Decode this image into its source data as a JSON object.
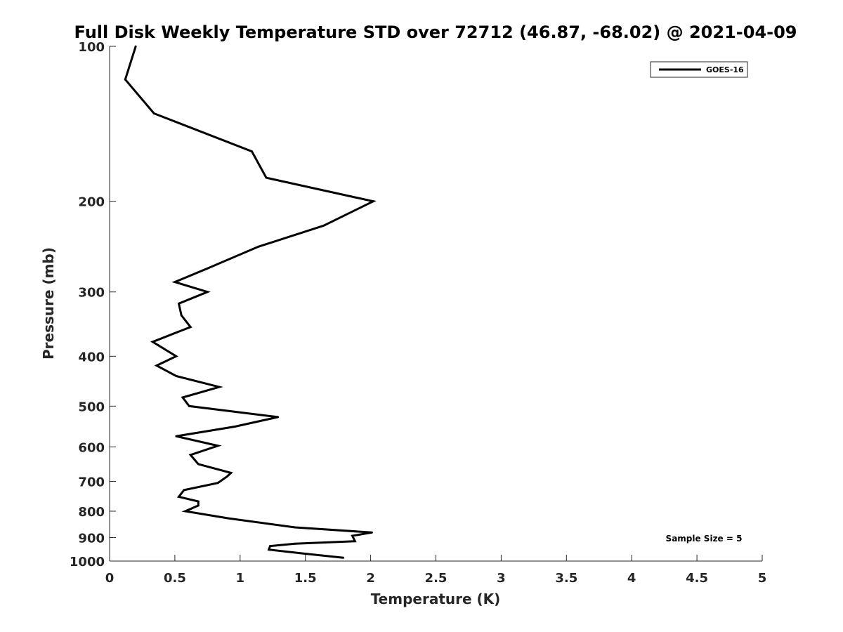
{
  "chart_data": {
    "type": "line",
    "title": "Full Disk Weekly Temperature STD over 72712 (46.87, -68.02) @ 2021-04-09",
    "xlabel": "Temperature (K)",
    "ylabel": "Pressure (mb)",
    "xlim": [
      0,
      5
    ],
    "ylim": [
      100,
      1000
    ],
    "y_scale": "log",
    "y_reversed": true,
    "x_ticks": [
      "0",
      "0.5",
      "1",
      "1.5",
      "2",
      "2.5",
      "3",
      "3.5",
      "4",
      "4.5",
      "5"
    ],
    "y_ticks": [
      "100",
      "200",
      "300",
      "400",
      "500",
      "600",
      "700",
      "800",
      "900",
      "1000"
    ],
    "grid": false,
    "legend_position": "top-right",
    "annotation": "Sample Size = 5",
    "series": [
      {
        "name": "GOES-16",
        "color": "#000000",
        "points": [
          {
            "x": 0.2,
            "y": 100
          },
          {
            "x": 0.12,
            "y": 116
          },
          {
            "x": 0.34,
            "y": 135
          },
          {
            "x": 1.09,
            "y": 160
          },
          {
            "x": 1.2,
            "y": 180
          },
          {
            "x": 2.02,
            "y": 200
          },
          {
            "x": 1.64,
            "y": 223
          },
          {
            "x": 1.14,
            "y": 245
          },
          {
            "x": 0.75,
            "y": 270
          },
          {
            "x": 0.5,
            "y": 287
          },
          {
            "x": 0.75,
            "y": 300
          },
          {
            "x": 0.53,
            "y": 316
          },
          {
            "x": 0.55,
            "y": 333
          },
          {
            "x": 0.62,
            "y": 351
          },
          {
            "x": 0.33,
            "y": 375
          },
          {
            "x": 0.51,
            "y": 400
          },
          {
            "x": 0.36,
            "y": 417
          },
          {
            "x": 0.51,
            "y": 437
          },
          {
            "x": 0.84,
            "y": 459
          },
          {
            "x": 0.56,
            "y": 481
          },
          {
            "x": 0.61,
            "y": 500
          },
          {
            "x": 1.29,
            "y": 525
          },
          {
            "x": 0.96,
            "y": 548
          },
          {
            "x": 0.51,
            "y": 572
          },
          {
            "x": 0.83,
            "y": 597
          },
          {
            "x": 0.62,
            "y": 622
          },
          {
            "x": 0.68,
            "y": 648
          },
          {
            "x": 0.93,
            "y": 674
          },
          {
            "x": 0.9,
            "y": 685
          },
          {
            "x": 0.83,
            "y": 705
          },
          {
            "x": 0.57,
            "y": 728
          },
          {
            "x": 0.53,
            "y": 750
          },
          {
            "x": 0.68,
            "y": 766
          },
          {
            "x": 0.68,
            "y": 780
          },
          {
            "x": 0.58,
            "y": 800
          },
          {
            "x": 0.91,
            "y": 826
          },
          {
            "x": 1.42,
            "y": 860
          },
          {
            "x": 2.01,
            "y": 880
          },
          {
            "x": 1.86,
            "y": 893
          },
          {
            "x": 1.88,
            "y": 915
          },
          {
            "x": 1.42,
            "y": 925
          },
          {
            "x": 1.23,
            "y": 935
          },
          {
            "x": 1.22,
            "y": 950
          },
          {
            "x": 1.46,
            "y": 965
          },
          {
            "x": 1.79,
            "y": 985
          }
        ]
      }
    ]
  }
}
